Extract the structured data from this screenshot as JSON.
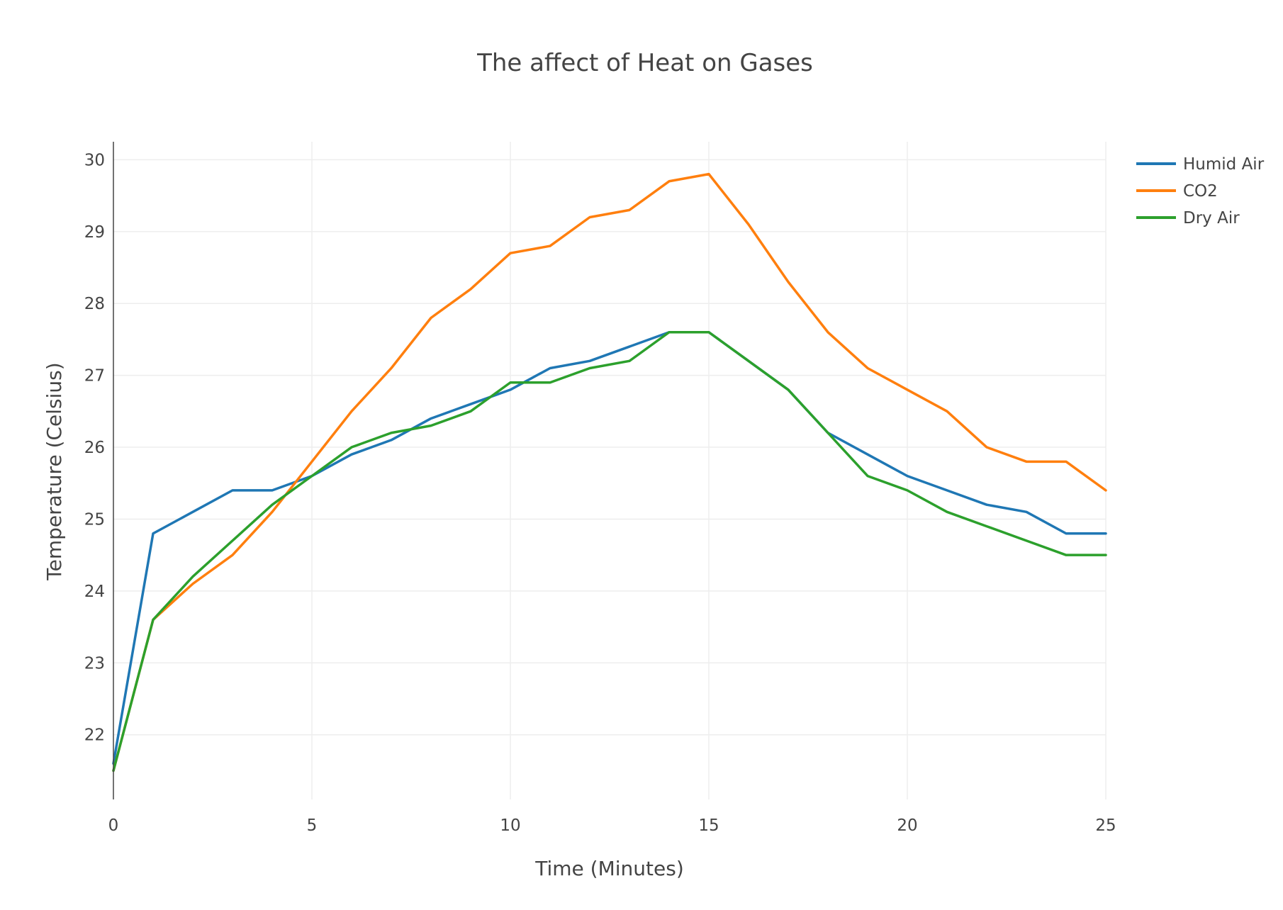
{
  "chart_data": {
    "type": "line",
    "title": "The affect of Heat on Gases",
    "xlabel": "Time (Minutes)",
    "ylabel": "Temperature (Celsius)",
    "xlim": [
      0,
      25
    ],
    "ylim": [
      21.1,
      30.25
    ],
    "x_ticks": [
      0,
      5,
      10,
      15,
      20,
      25
    ],
    "y_ticks": [
      22,
      23,
      24,
      25,
      26,
      27,
      28,
      29,
      30
    ],
    "grid": true,
    "legend_position": "top-right",
    "x": [
      0,
      1,
      2,
      3,
      4,
      5,
      6,
      7,
      8,
      9,
      10,
      11,
      12,
      13,
      14,
      15,
      16,
      17,
      18,
      19,
      20,
      21,
      22,
      23,
      24,
      25
    ],
    "series": [
      {
        "name": "Humid Air",
        "color": "#1f77b4",
        "values": [
          21.6,
          24.8,
          25.1,
          25.4,
          25.4,
          25.6,
          25.9,
          26.1,
          26.4,
          26.6,
          26.8,
          27.1,
          27.2,
          27.4,
          27.6,
          27.6,
          27.2,
          26.8,
          26.2,
          25.9,
          25.6,
          25.4,
          25.2,
          25.1,
          24.8,
          24.8
        ]
      },
      {
        "name": "CO2",
        "color": "#ff7f0e",
        "values": [
          21.5,
          23.6,
          24.1,
          24.5,
          25.1,
          25.8,
          26.5,
          27.1,
          27.8,
          28.2,
          28.7,
          28.8,
          29.2,
          29.3,
          29.7,
          29.8,
          29.1,
          28.3,
          27.6,
          27.1,
          26.8,
          26.5,
          26.0,
          25.8,
          25.8,
          25.4
        ]
      },
      {
        "name": "Dry Air",
        "color": "#2ca02c",
        "values": [
          21.5,
          23.6,
          24.2,
          24.7,
          25.2,
          25.6,
          26.0,
          26.2,
          26.3,
          26.5,
          26.9,
          26.9,
          27.1,
          27.2,
          27.6,
          27.6,
          27.2,
          26.8,
          26.2,
          25.6,
          25.4,
          25.1,
          24.9,
          24.7,
          24.5,
          24.5
        ]
      }
    ]
  }
}
